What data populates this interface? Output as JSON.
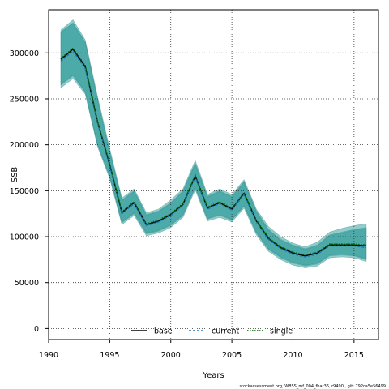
{
  "chart_data": {
    "type": "line",
    "title": "",
    "xlabel": "Years",
    "ylabel": "SSB",
    "xlim": [
      1990,
      2017
    ],
    "ylim": [
      -12000,
      347000
    ],
    "x_ticks": [
      1990,
      1995,
      2000,
      2005,
      2010,
      2015
    ],
    "y_ticks": [
      0,
      50000,
      100000,
      150000,
      200000,
      250000,
      300000
    ],
    "grid": true,
    "legend_position": "bottom-center",
    "x": [
      1991,
      1992,
      1993,
      1994,
      1995,
      1996,
      1997,
      1998,
      1999,
      2000,
      2001,
      2002,
      2003,
      2004,
      2005,
      2006,
      2007,
      2008,
      2009,
      2010,
      2011,
      2012,
      2013,
      2014,
      2015,
      2016
    ],
    "series": [
      {
        "name": "base",
        "color": "#000000",
        "style": "solid",
        "values": [
          293000,
          304000,
          285000,
          225000,
          178000,
          126000,
          137000,
          113000,
          117000,
          124000,
          135000,
          166000,
          131000,
          137000,
          130000,
          147000,
          117000,
          98000,
          88000,
          82000,
          79000,
          82000,
          91000,
          91000,
          91000,
          90000
        ],
        "lower": [
          265000,
          275000,
          257000,
          200000,
          165000,
          115000,
          125000,
          103000,
          106000,
          112000,
          123000,
          153000,
          119000,
          123000,
          118000,
          133000,
          104000,
          86000,
          77000,
          71000,
          68000,
          70000,
          79000,
          80000,
          79000,
          75000
        ],
        "upper": [
          323000,
          333000,
          312000,
          250000,
          193000,
          140000,
          150000,
          124000,
          128000,
          137000,
          150000,
          180000,
          144000,
          150000,
          144000,
          160000,
          128000,
          108000,
          97000,
          91000,
          87000,
          91000,
          102000,
          105000,
          108000,
          110000
        ]
      },
      {
        "name": "current",
        "color": "#1f77b4",
        "style": "dashed",
        "values": [
          291000,
          302000,
          283000,
          224000,
          177000,
          125000,
          136000,
          112000,
          116000,
          123000,
          134000,
          165000,
          130000,
          136000,
          129000,
          146000,
          116000,
          97000,
          87000,
          81000,
          78000,
          81000,
          90000,
          90000,
          90000,
          88000
        ],
        "lower": [
          262000,
          272000,
          255000,
          198000,
          163000,
          113000,
          123000,
          101000,
          104000,
          110000,
          121000,
          151000,
          117000,
          121000,
          116000,
          131000,
          102000,
          84000,
          75000,
          69000,
          66000,
          68000,
          77000,
          78000,
          77000,
          73000
        ],
        "upper": [
          325000,
          336000,
          314000,
          253000,
          196000,
          142000,
          152000,
          126000,
          130000,
          140000,
          152000,
          183000,
          146000,
          152000,
          146000,
          162000,
          130000,
          111000,
          100000,
          93000,
          89000,
          94000,
          105000,
          109000,
          112000,
          114000
        ]
      },
      {
        "name": "single",
        "color": "#006400",
        "style": "dotted",
        "values": [
          294000,
          305000,
          286000,
          226000,
          179000,
          127000,
          138000,
          114000,
          118000,
          125000,
          136000,
          167000,
          132000,
          138000,
          131000,
          148000,
          118000,
          99000,
          89000,
          83000,
          80000,
          83000,
          92000,
          92000,
          92000,
          91000
        ],
        "lower": [
          266000,
          276000,
          258000,
          201000,
          166000,
          116000,
          126000,
          104000,
          107000,
          113000,
          124000,
          154000,
          120000,
          124000,
          119000,
          134000,
          105000,
          87000,
          78000,
          72000,
          69000,
          71000,
          80000,
          81000,
          80000,
          76000
        ],
        "upper": [
          322000,
          332000,
          311000,
          249000,
          192000,
          139000,
          149000,
          123000,
          127000,
          136000,
          149000,
          179000,
          143000,
          149000,
          143000,
          159000,
          127000,
          107000,
          96000,
          90000,
          86000,
          90000,
          101000,
          104000,
          107000,
          109000
        ]
      }
    ]
  },
  "band_color": "#3aa3a0",
  "footer": "stockassessment.org, WBSS_mf_004_fbar36, r9490 , git: 792ca5e56499"
}
